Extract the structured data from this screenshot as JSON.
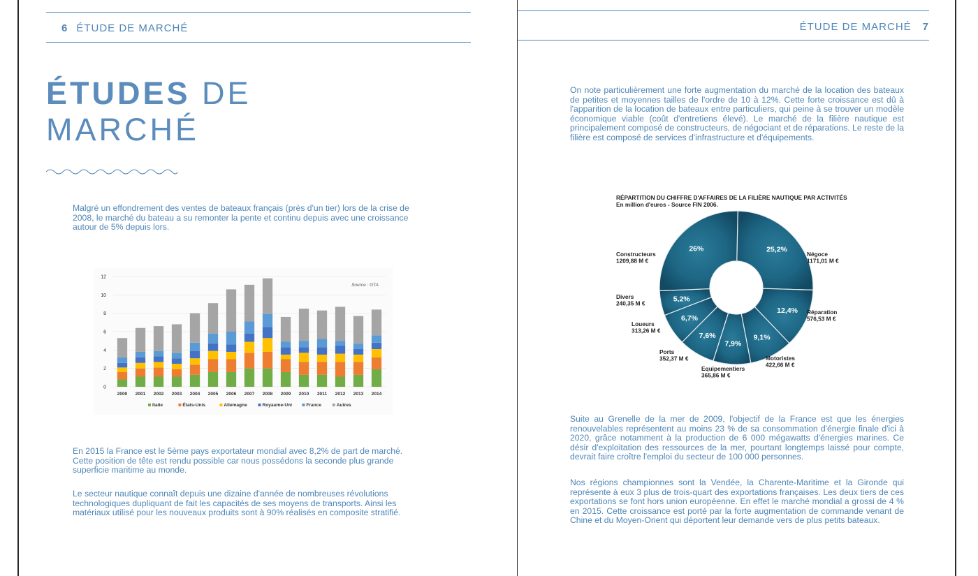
{
  "left_page": {
    "page_number": "6",
    "running_header": "ÉTUDE DE MARCHÉ",
    "title_bold": "ÉTUDES",
    "title_rest_line1": " DE",
    "title_line2": "MARCHÉ",
    "intro": "Malgré un effondrement des ventes de bateaux français (près d'un tier) lors de la crise de 2008, le marché du bateau a su remonter la pente et continu depuis avec une croissance autour de 5% depuis lors.",
    "para2": "En 2015 la France est le 5ème pays exportateur mondial avec 8,2% de part de marché. Cette position de tête est rendu possible car nous possédons la seconde plus grande superficie maritime au monde.",
    "para3": "Le secteur nautique connaît depuis une dizaine d'année de nombreuses révolutions technologiques dupliquant de fait les capacités de ses moyens de transports. Ainsi les matériaux utilisé pour les nouveaux produits sont à 90% réalisés en composite stratifié."
  },
  "right_page": {
    "page_number": "7",
    "running_header": "ÉTUDE DE MARCHÉ",
    "para1": "On note particulièrement une forte augmentation du marché de la location des bateaux de petites et moyennes tailles de l'ordre de 10 à 12%. Cette forte croissance est dû à l'apparition de la location de bateaux entre particuliers, qui peine à se trouver un modèle économique viable (coût d'entretiens élevé). Le marché de la filière nautique est principalement composé de constructeurs, de négociant et de réparations. Le reste de la filière est composé de services d'infrastructure et d'équipements.",
    "para2": "Suite au Grenelle de la mer de 2009, l'objectif de la France est que les énergies renouvelables représentent au moins 23 % de sa consommation d'énergie finale d'ici à 2020, grâce notamment à la production de 6 000 mégawatts d'énergies marines. Ce désir d'exploitation des ressources de la mer, pourtant longtemps laissé pour compte, devrait faire croître l'emploi du secteur de 100 000 personnes.",
    "para3": "Nos régions championnes sont la Vendée, la Charente-Maritime et la Gironde qui représente à eux 3 plus de trois-quart des exportations françaises. Les deux tiers de ces exportations se font hors union européenne. En effet le marché mondial a grossi de 4 % en 2015. Cette croissance est porté par la forte augmentation de commande venant de Chine et du Moyen-Orient qui déportent leur demande vers de plus petits bateaux."
  },
  "colors": {
    "text_blue": "#4f86b6",
    "italie": "#70ad47",
    "etats_unis": "#ed7d31",
    "allemagne": "#ffc000",
    "royaume_uni": "#4472c4",
    "france": "#5b9bd5",
    "autres": "#a5a5a5",
    "donut": "#1f5f7a"
  },
  "chart_data": [
    {
      "type": "bar",
      "stacked": true,
      "source_note": "Source : GTA",
      "categories": [
        "2000",
        "2001",
        "2002",
        "2003",
        "2004",
        "2005",
        "2006",
        "2007",
        "2008",
        "2009",
        "2010",
        "2011",
        "2012",
        "2013",
        "2014"
      ],
      "ylim": [
        0,
        12
      ],
      "yticks": [
        "0",
        "2",
        "4",
        "6",
        "8",
        "10",
        "12"
      ],
      "series": [
        {
          "name": "Italie",
          "values": [
            0.8,
            1.1,
            1.1,
            1.1,
            1.3,
            1.6,
            1.6,
            2.0,
            2.0,
            1.6,
            1.3,
            1.3,
            1.1,
            1.3,
            1.9
          ]
        },
        {
          "name": "États-Unis",
          "values": [
            0.8,
            0.9,
            1.0,
            0.8,
            1.1,
            1.4,
            1.4,
            1.7,
            1.8,
            1.4,
            1.4,
            1.4,
            1.6,
            1.4,
            1.3
          ]
        },
        {
          "name": "Allemagne",
          "values": [
            0.5,
            0.6,
            0.6,
            0.6,
            0.7,
            0.9,
            0.8,
            1.2,
            1.5,
            0.5,
            1.0,
            0.8,
            0.9,
            0.8,
            0.9
          ]
        },
        {
          "name": "Royaume-Uni",
          "values": [
            0.5,
            0.6,
            0.6,
            0.6,
            0.8,
            0.8,
            0.8,
            0.9,
            1.2,
            0.8,
            0.6,
            0.8,
            0.9,
            0.6,
            0.7
          ]
        },
        {
          "name": "France",
          "values": [
            0.6,
            0.6,
            0.6,
            0.6,
            0.9,
            1.1,
            1.4,
            1.3,
            1.4,
            0.6,
            0.7,
            0.9,
            0.5,
            0.6,
            0.8
          ]
        },
        {
          "name": "Autres",
          "values": [
            2.1,
            2.6,
            2.7,
            3.1,
            3.2,
            3.3,
            4.6,
            4.0,
            3.9,
            2.7,
            3.5,
            3.1,
            3.7,
            3.0,
            2.8
          ]
        }
      ]
    },
    {
      "type": "pie",
      "donut": true,
      "title": "RÉPARTITION DU CHIFFRE D'AFFAIRES DE LA FILIÈRE NAUTIQUE PAR ACTIVITÉS",
      "subtitle": "En million d'euros - Source FIN 2006.",
      "slices": [
        {
          "name": "Négoce",
          "value": "1171,01 M €",
          "percent": "25,2%",
          "share": 25.2
        },
        {
          "name": "Réparation",
          "value": "576,53 M €",
          "percent": "12,4%",
          "share": 12.4
        },
        {
          "name": "Motoristes",
          "value": "422,66 M €",
          "percent": "9,1%",
          "share": 9.1
        },
        {
          "name": "Equipementiers",
          "value": "365,86 M €",
          "percent": "7,9%",
          "share": 7.9
        },
        {
          "name": "Ports",
          "value": "352,37 M €",
          "percent": "7,6%",
          "share": 7.6
        },
        {
          "name": "Loueurs",
          "value": "313,26 M €",
          "percent": "6,7%",
          "share": 6.7
        },
        {
          "name": "Divers",
          "value": "240,35 M €",
          "percent": "5,2%",
          "share": 5.2
        },
        {
          "name": "Constructeurs",
          "value": "1209,88 M €",
          "percent": "26%",
          "share": 26.0
        }
      ]
    }
  ]
}
